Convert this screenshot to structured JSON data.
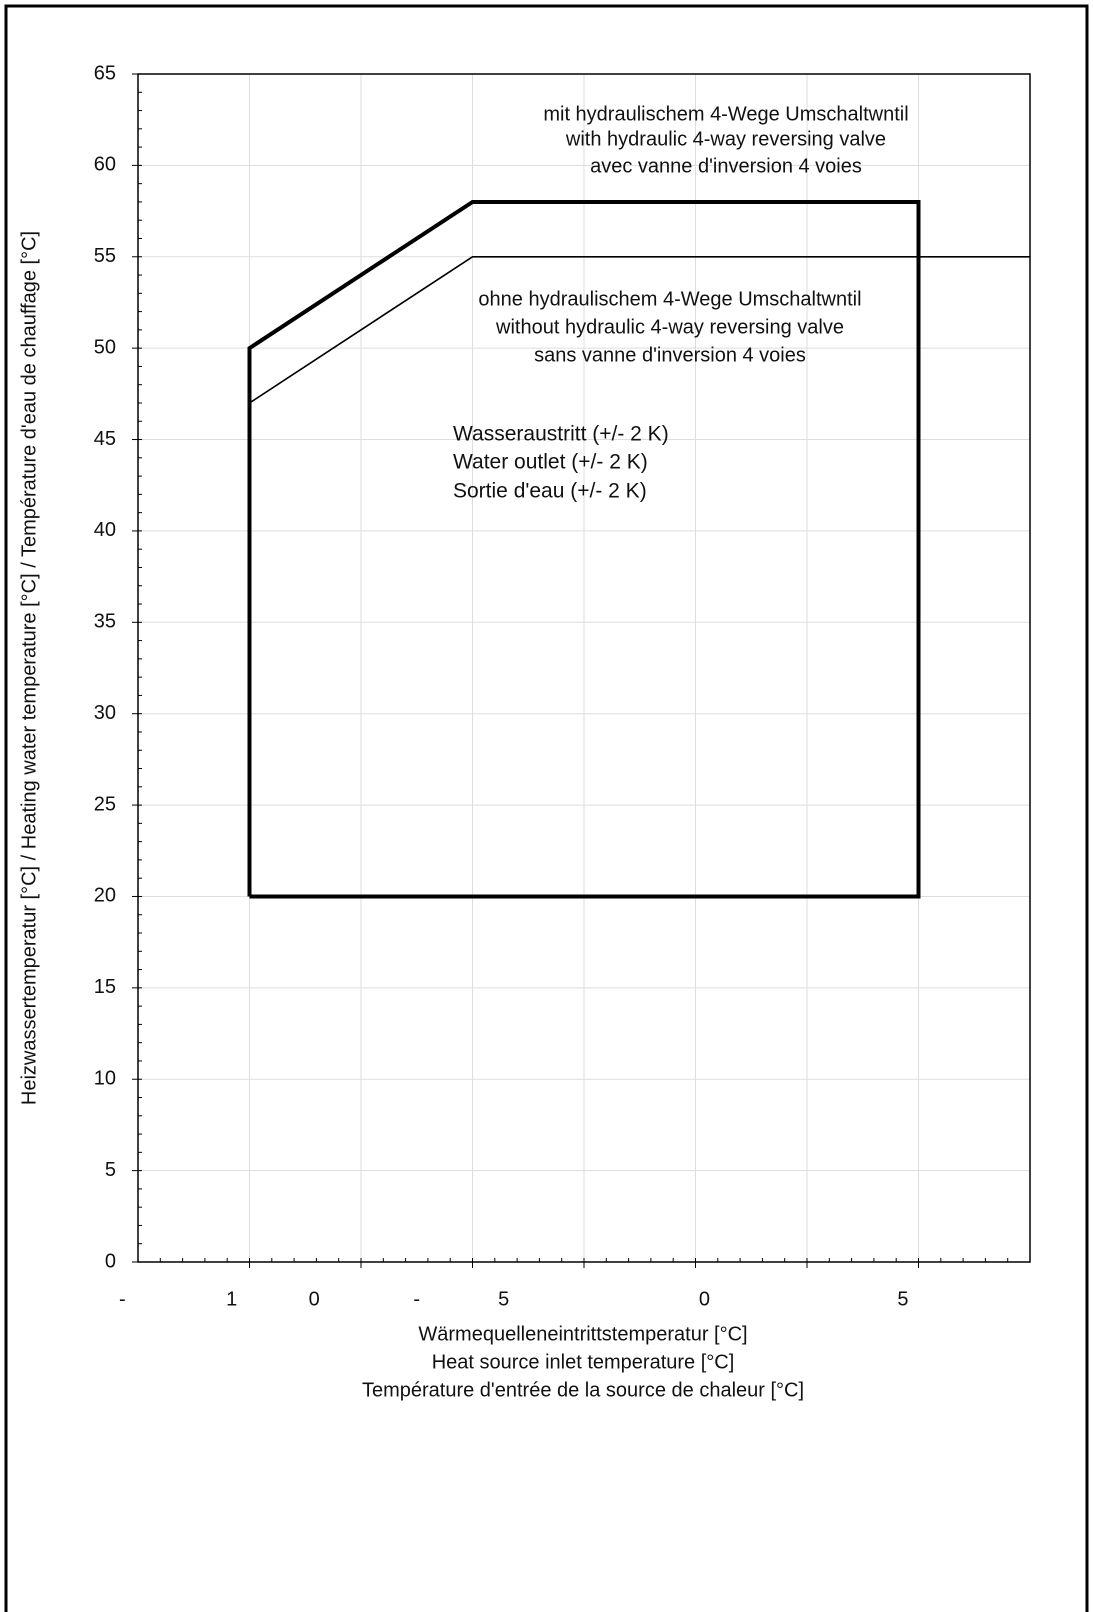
{
  "chart_data": {
    "type": "line",
    "ylabel": "Heizwassertemperatur [°C]  /  Heating water temperature [°C]  /  Température d'eau de chauffage [°C]",
    "xlabel": [
      "Wärmequelleneintrittstemperatur [°C]",
      "Heat source inlet temperature [°C]",
      "Température d'entrée de la source de chaleur  [°C]"
    ],
    "xlim": [
      -10,
      30
    ],
    "ylim": [
      0,
      65
    ],
    "yticks": [
      0,
      5,
      10,
      15,
      20,
      25,
      30,
      35,
      40,
      45,
      50,
      55,
      60,
      65
    ],
    "xticks": [
      {
        "value": -10.7,
        "label": "-"
      },
      {
        "value": -5.8,
        "label": "1"
      },
      {
        "value": -2.1,
        "label": "0"
      },
      {
        "value": 2.5,
        "label": "-"
      },
      {
        "value": 6.4,
        "label": "5"
      },
      {
        "value": 15.4,
        "label": "0"
      },
      {
        "value": 24.3,
        "label": "5"
      }
    ],
    "xgrid": [
      -5,
      0,
      5,
      10,
      15,
      20,
      25
    ],
    "grid": true,
    "series": [
      {
        "color": "#000000",
        "width": 4,
        "x": [
          -5,
          -5,
          5,
          25,
          25,
          -5
        ],
        "values": [
          20,
          50,
          58,
          58,
          20,
          20
        ]
      },
      {
        "color": "#000000",
        "width": 1.6,
        "x": [
          -5,
          5,
          30
        ],
        "values": [
          47,
          55,
          55
        ]
      }
    ],
    "annotations": [
      [
        "mit  hydraulischem 4-Wege Umschaltwntil",
        "with hydraulic 4-way reversing valve",
        "avec vanne d'inversion 4 voies"
      ],
      [
        "ohne hydraulischem 4-Wege Umschaltwntil",
        "without hydraulic 4-way reversing valve",
        "sans vanne d'inversion 4 voies"
      ],
      [
        "Wasseraustritt  (+/-  2 K)",
        "Water outlet (+/-  2 K)",
        "Sortie d'eau (+/-  2 K)"
      ]
    ]
  }
}
